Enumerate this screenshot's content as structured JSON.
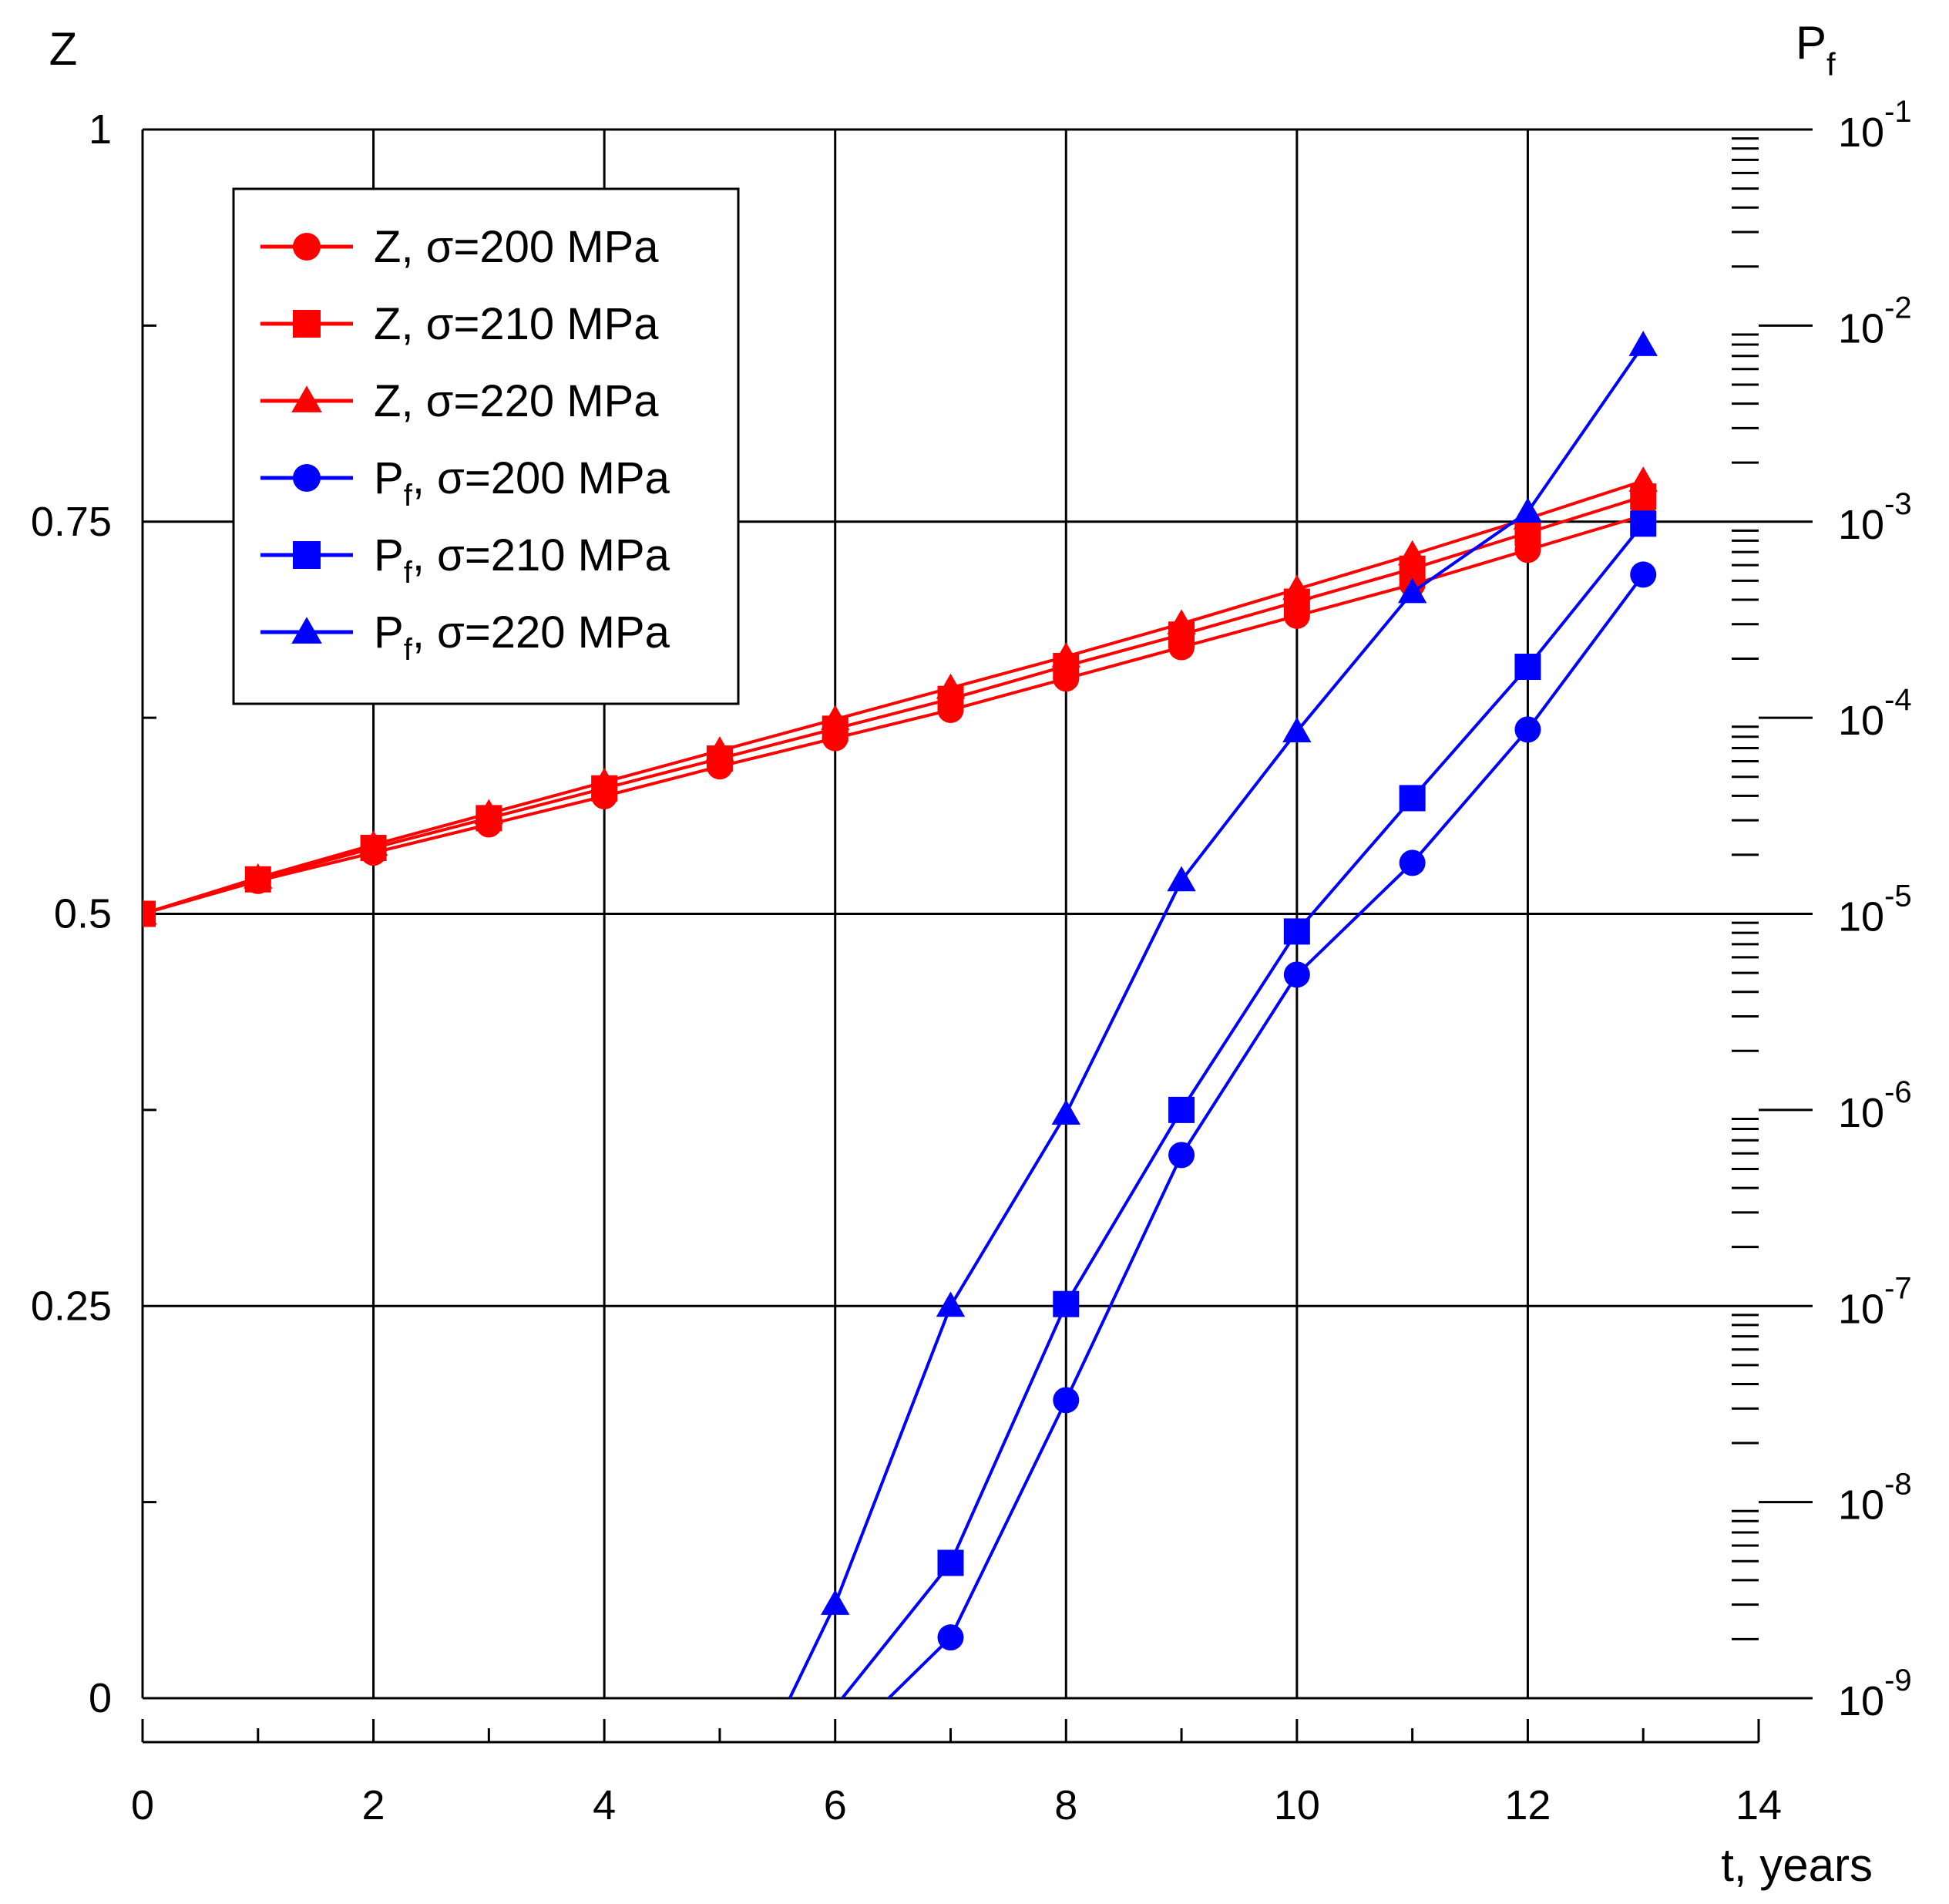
{
  "chart_data": {
    "type": "line",
    "title": "",
    "xlabel": "t, years",
    "ylabel": "Z",
    "y2label": {
      "main": "P",
      "sub": "f"
    },
    "xlim": [
      0,
      14
    ],
    "ylim": [
      0,
      1
    ],
    "y2lim_log10": [
      -9,
      -1
    ],
    "grid": true,
    "x_ticks": [
      "0",
      "2",
      "4",
      "6",
      "8",
      "10",
      "12",
      "14"
    ],
    "y_ticks": [
      "0",
      "0.25",
      "0.5",
      "0.75",
      "1"
    ],
    "y2_ticks": [
      {
        "base": "10",
        "exp": "-9"
      },
      {
        "base": "10",
        "exp": "-8"
      },
      {
        "base": "10",
        "exp": "-7"
      },
      {
        "base": "10",
        "exp": "-6"
      },
      {
        "base": "10",
        "exp": "-5"
      },
      {
        "base": "10",
        "exp": "-4"
      },
      {
        "base": "10",
        "exp": "-3"
      },
      {
        "base": "10",
        "exp": "-2"
      },
      {
        "base": "10",
        "exp": "-1"
      }
    ],
    "legend_position": "top-left",
    "series": [
      {
        "name": "Z, σ=200 MPa",
        "prefix": "Z",
        "sub": "",
        "suffix": ", σ=200 MPa",
        "axis": "left",
        "color": "#ff0000",
        "marker": "circle",
        "x": [
          0,
          1,
          2,
          3,
          4,
          5,
          6,
          7,
          8,
          9,
          10,
          11,
          12,
          13
        ],
        "y": [
          0.5,
          0.521,
          0.539,
          0.557,
          0.575,
          0.594,
          0.612,
          0.63,
          0.65,
          0.67,
          0.69,
          0.71,
          0.732,
          0.754
        ]
      },
      {
        "name": "Z, σ=210 MPa",
        "prefix": "Z",
        "sub": "",
        "suffix": ", σ=210 MPa",
        "axis": "left",
        "color": "#ff0000",
        "marker": "square",
        "x": [
          0,
          1,
          2,
          3,
          4,
          5,
          6,
          7,
          8,
          9,
          10,
          11,
          12,
          13
        ],
        "y": [
          0.5,
          0.522,
          0.542,
          0.561,
          0.58,
          0.599,
          0.618,
          0.637,
          0.658,
          0.678,
          0.699,
          0.72,
          0.743,
          0.766
        ]
      },
      {
        "name": "Z, σ=220 MPa",
        "prefix": "Z",
        "sub": "",
        "suffix": ", σ=220 MPa",
        "axis": "left",
        "color": "#ff0000",
        "marker": "triangle",
        "x": [
          0,
          1,
          2,
          3,
          4,
          5,
          6,
          7,
          8,
          9,
          10,
          11,
          12,
          13
        ],
        "y": [
          0.5,
          0.523,
          0.544,
          0.564,
          0.584,
          0.604,
          0.624,
          0.644,
          0.664,
          0.685,
          0.707,
          0.729,
          0.752,
          0.776
        ]
      },
      {
        "name": "Pf, σ=200 MPa",
        "prefix": "P",
        "sub": "f",
        "suffix": ", σ=200 MPa",
        "axis": "right",
        "color": "#0000ff",
        "marker": "circle",
        "x_line_start": 6.45,
        "x": [
          7,
          8,
          9,
          10,
          11,
          12,
          13
        ],
        "log10_y": [
          -8.69,
          -7.48,
          -6.23,
          -5.31,
          -4.74,
          -4.06,
          -3.27
        ]
      },
      {
        "name": "Pf, σ=210 MPa",
        "prefix": "P",
        "sub": "f",
        "suffix": ", σ=210 MPa",
        "axis": "right",
        "color": "#0000ff",
        "marker": "square",
        "x_line_start": 6.05,
        "x": [
          7,
          8,
          9,
          10,
          11,
          12,
          13
        ],
        "log10_y": [
          -8.31,
          -6.99,
          -6.0,
          -5.09,
          -4.41,
          -3.74,
          -3.01
        ]
      },
      {
        "name": "Pf, σ=220 MPa",
        "prefix": "P",
        "sub": "f",
        "suffix": ", σ=220 MPa",
        "axis": "right",
        "color": "#0000ff",
        "marker": "triangle",
        "x_line_start": 5.6,
        "x": [
          6,
          7,
          8,
          9,
          10,
          11,
          12,
          13
        ],
        "log10_y": [
          -8.52,
          -7.0,
          -6.02,
          -4.83,
          -4.07,
          -3.36,
          -2.95,
          -2.1
        ]
      }
    ]
  }
}
